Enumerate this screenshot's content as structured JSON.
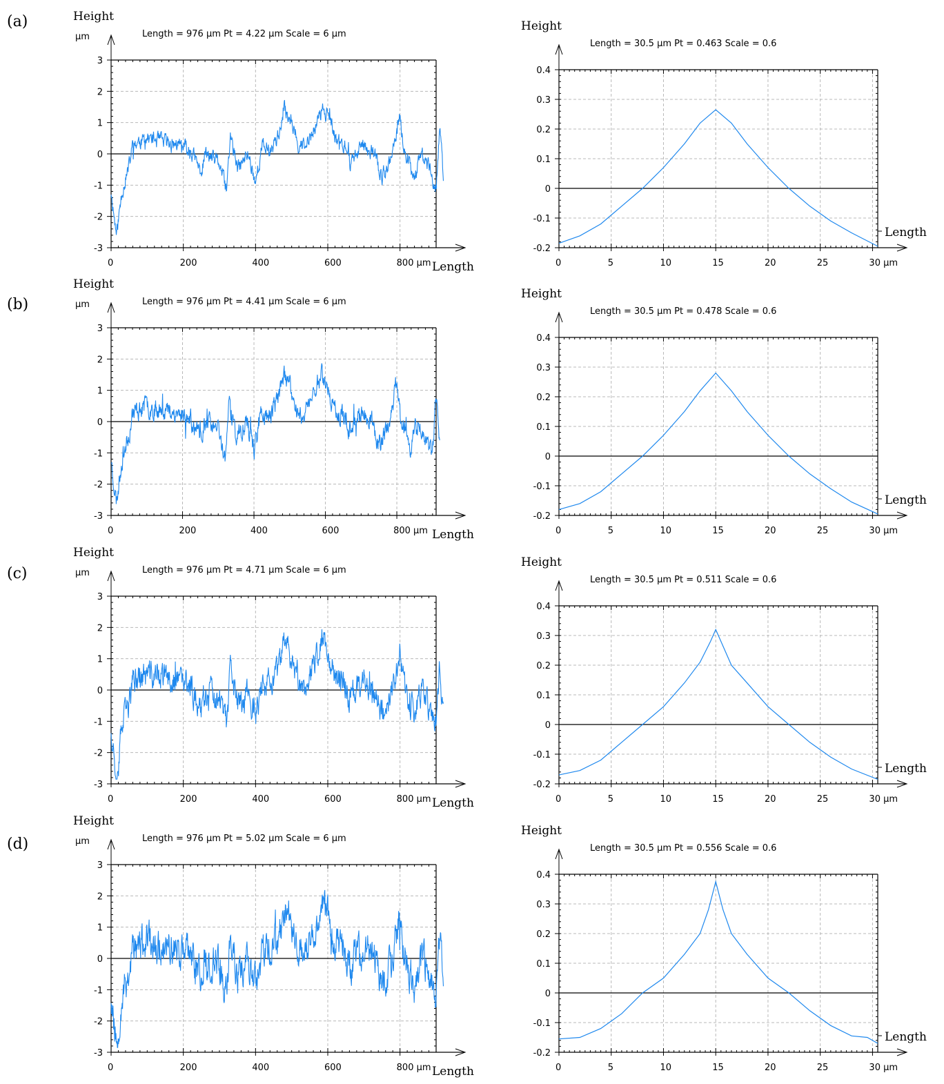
{
  "figure": {
    "panel_labels": [
      "(a)",
      "(b)",
      "(c)",
      "(d)"
    ]
  },
  "colors": {
    "series": "#1e88ee",
    "grid": "#b8b8b8",
    "axis": "#000000",
    "zero_line": "#000000"
  },
  "chart_data": [
    {
      "panel": "(a)",
      "kind": "profile",
      "type": "line",
      "header": "Length = 976 µm  Pt = 4.22 µm  Scale = 6 µm",
      "ylabel": "Height",
      "yunit": "µm",
      "xlabel": "Length",
      "xlim": [
        0,
        900
      ],
      "ylim": [
        -3,
        3
      ],
      "xticks": [
        "0",
        "200",
        "400",
        "600",
        "800 µm"
      ],
      "xtick_values": [
        0,
        200,
        400,
        600,
        800
      ],
      "yticks": [
        "3",
        "2",
        "1",
        "0",
        "-1",
        "-2",
        "-3"
      ],
      "ytick_values": [
        3,
        2,
        1,
        0,
        -1,
        -2,
        -3
      ],
      "pt": 4.22,
      "noise": 0.2,
      "seed": 11,
      "anchors": [
        [
          0,
          -1.2
        ],
        [
          15,
          -2.6
        ],
        [
          30,
          -1.2
        ],
        [
          50,
          -0.4
        ],
        [
          60,
          0.3
        ],
        [
          100,
          0.5
        ],
        [
          140,
          0.4
        ],
        [
          180,
          0.3
        ],
        [
          220,
          0.1
        ],
        [
          250,
          -0.6
        ],
        [
          260,
          0.0
        ],
        [
          300,
          -0.3
        ],
        [
          320,
          -1.2
        ],
        [
          330,
          0.6
        ],
        [
          350,
          -0.5
        ],
        [
          380,
          0.0
        ],
        [
          400,
          -0.9
        ],
        [
          420,
          0.3
        ],
        [
          440,
          0.1
        ],
        [
          470,
          0.8
        ],
        [
          480,
          1.4
        ],
        [
          500,
          1.1
        ],
        [
          520,
          0.3
        ],
        [
          540,
          0.2
        ],
        [
          570,
          1.0
        ],
        [
          590,
          1.5
        ],
        [
          610,
          0.9
        ],
        [
          620,
          0.5
        ],
        [
          650,
          0.2
        ],
        [
          660,
          -0.3
        ],
        [
          690,
          0.2
        ],
        [
          700,
          0.3
        ],
        [
          730,
          0.0
        ],
        [
          750,
          -0.8
        ],
        [
          780,
          0.0
        ],
        [
          800,
          1.2
        ],
        [
          810,
          0.2
        ],
        [
          840,
          -0.7
        ],
        [
          860,
          0.0
        ],
        [
          880,
          -0.4
        ],
        [
          900,
          -1.1
        ],
        [
          910,
          0.8
        ],
        [
          920,
          -0.7
        ]
      ]
    },
    {
      "panel": "(a)",
      "kind": "autocorrelation",
      "type": "line",
      "header": "Length = 30.5 µm  Pt = 0.463    Scale = 0.6",
      "ylabel": "Height",
      "yunit": "",
      "xlabel": "Length",
      "xlim": [
        0,
        30.5
      ],
      "ylim": [
        -0.2,
        0.4
      ],
      "xticks": [
        "0",
        "5",
        "10",
        "15",
        "20",
        "25",
        "30 µm"
      ],
      "xtick_values": [
        0,
        5,
        10,
        15,
        20,
        25,
        30
      ],
      "yticks": [
        "0.4",
        "0.3",
        "0.2",
        "0.1",
        "0",
        "-0.1",
        "-0.2"
      ],
      "ytick_values": [
        0.4,
        0.3,
        0.2,
        0.1,
        0,
        -0.1,
        -0.2
      ],
      "pt": 0.463,
      "points": [
        [
          0,
          -0.185
        ],
        [
          2,
          -0.16
        ],
        [
          4,
          -0.12
        ],
        [
          6,
          -0.06
        ],
        [
          8,
          0.0
        ],
        [
          10,
          0.07
        ],
        [
          12,
          0.15
        ],
        [
          13.5,
          0.22
        ],
        [
          15,
          0.265
        ],
        [
          16.5,
          0.22
        ],
        [
          18,
          0.15
        ],
        [
          20,
          0.07
        ],
        [
          22,
          0.0
        ],
        [
          24,
          -0.06
        ],
        [
          26,
          -0.11
        ],
        [
          28,
          -0.15
        ],
        [
          30.5,
          -0.195
        ]
      ]
    },
    {
      "panel": "(b)",
      "kind": "profile",
      "type": "line",
      "header": "Length = 976 µm  Pt = 4.41 µm  Scale = 6 µm",
      "ylabel": "Height",
      "yunit": "µm",
      "xlabel": "Length",
      "xlim": [
        0,
        910
      ],
      "ylim": [
        -3,
        3
      ],
      "xticks": [
        "0",
        "200",
        "400",
        "600",
        "800 µm"
      ],
      "xtick_values": [
        0,
        200,
        400,
        600,
        800
      ],
      "yticks": [
        "3",
        "2",
        "1",
        "0",
        "-1",
        "-2",
        "-3"
      ],
      "ytick_values": [
        3,
        2,
        1,
        0,
        -1,
        -2,
        -3
      ],
      "pt": 4.41,
      "noise": 0.26,
      "seed": 23,
      "anchors": [
        [
          0,
          -1.2
        ],
        [
          15,
          -2.6
        ],
        [
          30,
          -1.2
        ],
        [
          50,
          -0.4
        ],
        [
          60,
          0.3
        ],
        [
          100,
          0.5
        ],
        [
          140,
          0.4
        ],
        [
          180,
          0.3
        ],
        [
          220,
          0.1
        ],
        [
          250,
          -0.6
        ],
        [
          260,
          0.0
        ],
        [
          300,
          -0.3
        ],
        [
          320,
          -1.2
        ],
        [
          330,
          0.6
        ],
        [
          350,
          -0.5
        ],
        [
          380,
          0.0
        ],
        [
          400,
          -0.9
        ],
        [
          420,
          0.3
        ],
        [
          440,
          0.1
        ],
        [
          470,
          0.8
        ],
        [
          480,
          1.5
        ],
        [
          500,
          1.1
        ],
        [
          520,
          0.3
        ],
        [
          540,
          0.2
        ],
        [
          570,
          1.0
        ],
        [
          590,
          1.6
        ],
        [
          610,
          0.9
        ],
        [
          620,
          0.5
        ],
        [
          650,
          0.2
        ],
        [
          660,
          -0.3
        ],
        [
          690,
          0.2
        ],
        [
          700,
          0.3
        ],
        [
          730,
          0.0
        ],
        [
          750,
          -0.8
        ],
        [
          780,
          0.0
        ],
        [
          800,
          1.3
        ],
        [
          810,
          0.2
        ],
        [
          840,
          -0.8
        ],
        [
          860,
          0.0
        ],
        [
          880,
          -0.5
        ],
        [
          900,
          -1.1
        ],
        [
          910,
          0.8
        ],
        [
          920,
          -0.8
        ]
      ]
    },
    {
      "panel": "(b)",
      "kind": "autocorrelation",
      "type": "line",
      "header": "Length = 30.5 µm  Pt = 0.478    Scale = 0.6",
      "ylabel": "Height",
      "yunit": "",
      "xlabel": "Length",
      "xlim": [
        0,
        30.5
      ],
      "ylim": [
        -0.2,
        0.4
      ],
      "xticks": [
        "0",
        "5",
        "10",
        "15",
        "20",
        "25",
        "30 µm"
      ],
      "xtick_values": [
        0,
        5,
        10,
        15,
        20,
        25,
        30
      ],
      "yticks": [
        "0.4",
        "0.3",
        "0.2",
        "0.1",
        "0",
        "-0.1",
        "-0.2"
      ],
      "ytick_values": [
        0.4,
        0.3,
        0.2,
        0.1,
        0,
        -0.1,
        -0.2
      ],
      "pt": 0.478,
      "points": [
        [
          0,
          -0.18
        ],
        [
          2,
          -0.16
        ],
        [
          4,
          -0.12
        ],
        [
          6,
          -0.06
        ],
        [
          8,
          0.0
        ],
        [
          10,
          0.07
        ],
        [
          12,
          0.15
        ],
        [
          13.5,
          0.22
        ],
        [
          15,
          0.28
        ],
        [
          16.5,
          0.22
        ],
        [
          18,
          0.15
        ],
        [
          20,
          0.07
        ],
        [
          22,
          0.0
        ],
        [
          24,
          -0.06
        ],
        [
          26,
          -0.11
        ],
        [
          28,
          -0.155
        ],
        [
          30.5,
          -0.195
        ]
      ]
    },
    {
      "panel": "(c)",
      "kind": "profile",
      "type": "line",
      "header": "Length = 976 µm  Pt = 4.71 µm  Scale = 6 µm",
      "ylabel": "Height",
      "yunit": "µm",
      "xlabel": "Length",
      "xlim": [
        0,
        900
      ],
      "ylim": [
        -3,
        3
      ],
      "xticks": [
        "0",
        "200",
        "400",
        "600",
        "800 µm"
      ],
      "xtick_values": [
        0,
        200,
        400,
        600,
        800
      ],
      "yticks": [
        "3",
        "2",
        "1",
        "0",
        "-1",
        "-2",
        "-3"
      ],
      "ytick_values": [
        3,
        2,
        1,
        0,
        -1,
        -2,
        -3
      ],
      "pt": 4.71,
      "noise": 0.36,
      "seed": 37,
      "anchors": [
        [
          0,
          -1.2
        ],
        [
          15,
          -2.7
        ],
        [
          30,
          -1.2
        ],
        [
          50,
          -0.4
        ],
        [
          60,
          0.3
        ],
        [
          100,
          0.5
        ],
        [
          140,
          0.4
        ],
        [
          180,
          0.3
        ],
        [
          220,
          0.1
        ],
        [
          250,
          -0.6
        ],
        [
          260,
          0.0
        ],
        [
          300,
          -0.3
        ],
        [
          320,
          -1.2
        ],
        [
          330,
          0.6
        ],
        [
          350,
          -0.5
        ],
        [
          380,
          0.0
        ],
        [
          400,
          -0.9
        ],
        [
          420,
          0.3
        ],
        [
          440,
          0.1
        ],
        [
          470,
          0.8
        ],
        [
          480,
          1.6
        ],
        [
          500,
          1.1
        ],
        [
          520,
          0.3
        ],
        [
          540,
          0.2
        ],
        [
          570,
          1.0
        ],
        [
          590,
          1.7
        ],
        [
          610,
          0.9
        ],
        [
          620,
          0.5
        ],
        [
          650,
          0.2
        ],
        [
          660,
          -0.3
        ],
        [
          690,
          0.2
        ],
        [
          700,
          0.3
        ],
        [
          730,
          0.0
        ],
        [
          750,
          -0.8
        ],
        [
          780,
          0.0
        ],
        [
          800,
          1.4
        ],
        [
          810,
          0.2
        ],
        [
          840,
          -0.9
        ],
        [
          860,
          0.0
        ],
        [
          880,
          -0.5
        ],
        [
          900,
          -1.1
        ],
        [
          910,
          0.8
        ],
        [
          920,
          -0.8
        ]
      ]
    },
    {
      "panel": "(c)",
      "kind": "autocorrelation",
      "type": "line",
      "header": "Length = 30.5 µm  Pt = 0.511    Scale = 0.6",
      "ylabel": "Height",
      "yunit": "",
      "xlabel": "Length",
      "xlim": [
        0,
        30.5
      ],
      "ylim": [
        -0.2,
        0.4
      ],
      "xticks": [
        "0",
        "5",
        "10",
        "15",
        "20",
        "25",
        "30 µm"
      ],
      "xtick_values": [
        0,
        5,
        10,
        15,
        20,
        25,
        30
      ],
      "yticks": [
        "0.4",
        "0.3",
        "0.2",
        "0.1",
        "0",
        "-0.1",
        "-0.2"
      ],
      "ytick_values": [
        0.4,
        0.3,
        0.2,
        0.1,
        0,
        -0.1,
        -0.2
      ],
      "pt": 0.511,
      "points": [
        [
          0,
          -0.17
        ],
        [
          2,
          -0.155
        ],
        [
          4,
          -0.12
        ],
        [
          6,
          -0.06
        ],
        [
          8,
          0.0
        ],
        [
          10,
          0.06
        ],
        [
          12,
          0.14
        ],
        [
          13.5,
          0.21
        ],
        [
          14.5,
          0.28
        ],
        [
          15,
          0.32
        ],
        [
          15.5,
          0.28
        ],
        [
          16.5,
          0.2
        ],
        [
          18,
          0.14
        ],
        [
          20,
          0.06
        ],
        [
          22,
          0.0
        ],
        [
          24,
          -0.06
        ],
        [
          26,
          -0.11
        ],
        [
          28,
          -0.15
        ],
        [
          30.5,
          -0.185
        ]
      ]
    },
    {
      "panel": "(d)",
      "kind": "profile",
      "type": "line",
      "header": "Length = 976 µm  Pt = 5.02 µm  Scale = 6 µm",
      "ylabel": "Height",
      "yunit": "µm",
      "xlabel": "Length",
      "xlim": [
        0,
        900
      ],
      "ylim": [
        -3,
        3
      ],
      "xticks": [
        "0",
        "200",
        "400",
        "600",
        "800 µm"
      ],
      "xtick_values": [
        0,
        200,
        400,
        600,
        800
      ],
      "yticks": [
        "3",
        "2",
        "1",
        "0",
        "-1",
        "-2",
        "-3"
      ],
      "ytick_values": [
        3,
        2,
        1,
        0,
        -1,
        -2,
        -3
      ],
      "pt": 5.02,
      "noise": 0.46,
      "seed": 53,
      "anchors": [
        [
          0,
          -1.2
        ],
        [
          15,
          -2.7
        ],
        [
          30,
          -1.2
        ],
        [
          50,
          -0.4
        ],
        [
          60,
          0.3
        ],
        [
          100,
          0.5
        ],
        [
          140,
          0.4
        ],
        [
          180,
          0.3
        ],
        [
          220,
          0.1
        ],
        [
          250,
          -0.6
        ],
        [
          260,
          0.0
        ],
        [
          300,
          -0.3
        ],
        [
          320,
          -1.2
        ],
        [
          330,
          0.6
        ],
        [
          350,
          -0.5
        ],
        [
          380,
          0.0
        ],
        [
          400,
          -0.9
        ],
        [
          420,
          0.3
        ],
        [
          440,
          0.1
        ],
        [
          470,
          0.8
        ],
        [
          480,
          1.7
        ],
        [
          500,
          1.1
        ],
        [
          520,
          0.3
        ],
        [
          540,
          0.2
        ],
        [
          570,
          1.0
        ],
        [
          590,
          1.8
        ],
        [
          610,
          0.9
        ],
        [
          620,
          0.5
        ],
        [
          650,
          0.2
        ],
        [
          660,
          -0.3
        ],
        [
          690,
          0.2
        ],
        [
          700,
          0.3
        ],
        [
          730,
          0.0
        ],
        [
          750,
          -0.8
        ],
        [
          780,
          0.0
        ],
        [
          800,
          1.5
        ],
        [
          810,
          0.2
        ],
        [
          840,
          -1.0
        ],
        [
          860,
          0.0
        ],
        [
          880,
          -0.5
        ],
        [
          900,
          -1.1
        ],
        [
          910,
          0.8
        ],
        [
          920,
          -0.8
        ]
      ]
    },
    {
      "panel": "(d)",
      "kind": "autocorrelation",
      "type": "line",
      "header": "Length = 30.5 µm  Pt = 0.556    Scale = 0.6",
      "ylabel": "Height",
      "yunit": "",
      "xlabel": "Length",
      "xlim": [
        0,
        30.5
      ],
      "ylim": [
        -0.2,
        0.4
      ],
      "xticks": [
        "0",
        "5",
        "10",
        "15",
        "20",
        "25",
        "30 µm"
      ],
      "xtick_values": [
        0,
        5,
        10,
        15,
        20,
        25,
        30
      ],
      "yticks": [
        "0.4",
        "0.3",
        "0.2",
        "0.1",
        "0",
        "-0.1",
        "-0.2"
      ],
      "ytick_values": [
        0.4,
        0.3,
        0.2,
        0.1,
        0,
        -0.1,
        -0.2
      ],
      "pt": 0.556,
      "points": [
        [
          0,
          -0.155
        ],
        [
          2,
          -0.15
        ],
        [
          4,
          -0.12
        ],
        [
          6,
          -0.07
        ],
        [
          8,
          0.0
        ],
        [
          10,
          0.05
        ],
        [
          12,
          0.13
        ],
        [
          13.5,
          0.2
        ],
        [
          14.3,
          0.28
        ],
        [
          15,
          0.375
        ],
        [
          15.7,
          0.28
        ],
        [
          16.5,
          0.2
        ],
        [
          18,
          0.13
        ],
        [
          20,
          0.05
        ],
        [
          22,
          0.0
        ],
        [
          24,
          -0.06
        ],
        [
          26,
          -0.11
        ],
        [
          28,
          -0.145
        ],
        [
          29.5,
          -0.15
        ],
        [
          30.5,
          -0.17
        ]
      ]
    }
  ]
}
